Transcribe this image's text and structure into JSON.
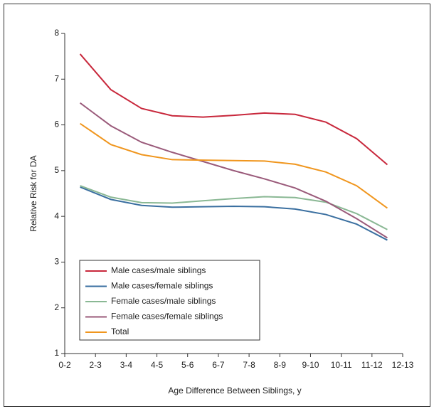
{
  "chart_data": {
    "type": "line",
    "y_label": "Relative Risk for DA",
    "x_label": "Age Difference Between Siblings, y",
    "x": [
      0.5,
      1.5,
      2.5,
      3.5,
      4.5,
      5.5,
      6.5,
      7.5,
      8.5,
      9.5,
      10.5
    ],
    "xlim": [
      0,
      11
    ],
    "xticks": [
      {
        "value": 0,
        "label": "0-2"
      },
      {
        "value": 1,
        "label": "2-3"
      },
      {
        "value": 2,
        "label": "3-4"
      },
      {
        "value": 3,
        "label": "4-5"
      },
      {
        "value": 4,
        "label": "5-6"
      },
      {
        "value": 5,
        "label": "6-7"
      },
      {
        "value": 6,
        "label": "7-8"
      },
      {
        "value": 7,
        "label": "8-9"
      },
      {
        "value": 8,
        "label": "9-10"
      },
      {
        "value": 9,
        "label": "10-11"
      },
      {
        "value": 10,
        "label": "11-12"
      },
      {
        "value": 11,
        "label": "12-13"
      }
    ],
    "ylim": [
      1,
      8
    ],
    "yticks": [
      1,
      2,
      3,
      4,
      5,
      6,
      7,
      8
    ],
    "legend": "lower left",
    "series": [
      {
        "name": "Male cases/male siblings",
        "color": "#c8283c",
        "values": [
          7.55,
          6.77,
          6.36,
          6.2,
          6.17,
          6.21,
          6.26,
          6.23,
          6.06,
          5.7,
          5.13
        ]
      },
      {
        "name": "Male cases/female siblings",
        "color": "#3a6fa0",
        "values": [
          4.64,
          4.37,
          4.24,
          4.2,
          4.21,
          4.22,
          4.21,
          4.16,
          4.04,
          3.83,
          3.48
        ]
      },
      {
        "name": "Female cases/male siblings",
        "color": "#8ab894",
        "values": [
          4.67,
          4.42,
          4.3,
          4.29,
          4.34,
          4.39,
          4.43,
          4.41,
          4.31,
          4.06,
          3.71
        ]
      },
      {
        "name": "Female cases/female siblings",
        "color": "#9a5a7a",
        "values": [
          6.48,
          5.98,
          5.62,
          5.4,
          5.2,
          5.0,
          4.82,
          4.62,
          4.33,
          3.95,
          3.53
        ]
      },
      {
        "name": "Total",
        "color": "#f0961e",
        "values": [
          6.03,
          5.57,
          5.35,
          5.24,
          5.23,
          5.22,
          5.21,
          5.14,
          4.97,
          4.67,
          4.18
        ]
      }
    ]
  }
}
